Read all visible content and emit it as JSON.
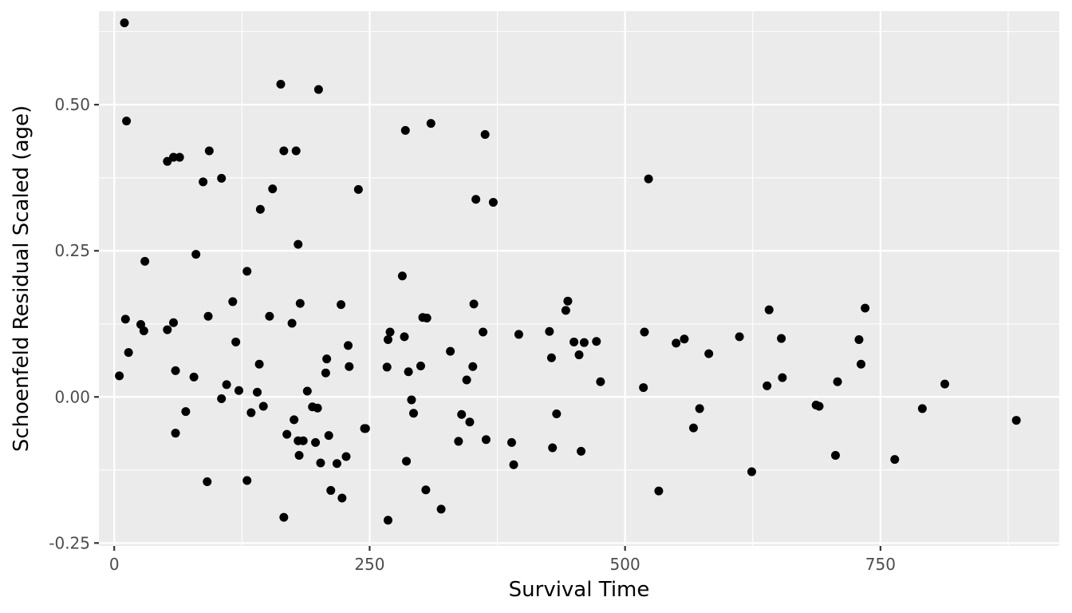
{
  "chart_data": {
    "type": "scatter",
    "title": "",
    "xlabel": "Survival Time",
    "ylabel": "Schoenfeld Residual Scaled (age)",
    "xlim": [
      -15,
      925
    ],
    "ylim": [
      -0.255,
      0.66
    ],
    "xticks": [
      0,
      250,
      500,
      750
    ],
    "xtick_labels": [
      "0",
      "250",
      "500",
      "750"
    ],
    "yticks": [
      -0.25,
      0,
      0.25,
      0.5
    ],
    "ytick_labels": [
      "-0.25",
      "0.00",
      "0.25",
      "0.50"
    ],
    "x_minor": [
      125,
      375,
      625,
      875
    ],
    "y_minor": [
      -0.125,
      0.125,
      0.375,
      0.625
    ],
    "grid": true,
    "panel_color": "#ebebeb",
    "point_color": "#000000",
    "points": [
      [
        10,
        0.64
      ],
      [
        12,
        0.472
      ],
      [
        5,
        0.036
      ],
      [
        14,
        0.076
      ],
      [
        11,
        0.133
      ],
      [
        26,
        0.124
      ],
      [
        29,
        0.113
      ],
      [
        30,
        0.232
      ],
      [
        52,
        0.403
      ],
      [
        58,
        0.41
      ],
      [
        64,
        0.41
      ],
      [
        52,
        0.115
      ],
      [
        58,
        0.127
      ],
      [
        60,
        0.045
      ],
      [
        60,
        -0.062
      ],
      [
        70,
        -0.025
      ],
      [
        78,
        0.034
      ],
      [
        80,
        0.244
      ],
      [
        87,
        0.368
      ],
      [
        93,
        0.421
      ],
      [
        92,
        0.138
      ],
      [
        91,
        -0.145
      ],
      [
        105,
        0.374
      ],
      [
        105,
        -0.003
      ],
      [
        110,
        0.021
      ],
      [
        116,
        0.163
      ],
      [
        119,
        0.094
      ],
      [
        122,
        0.011
      ],
      [
        130,
        0.215
      ],
      [
        130,
        -0.143
      ],
      [
        134,
        -0.027
      ],
      [
        140,
        0.008
      ],
      [
        142,
        0.056
      ],
      [
        143,
        0.321
      ],
      [
        146,
        -0.016
      ],
      [
        152,
        0.138
      ],
      [
        155,
        0.356
      ],
      [
        163,
        0.535
      ],
      [
        166,
        0.421
      ],
      [
        166,
        -0.206
      ],
      [
        169,
        -0.064
      ],
      [
        174,
        0.126
      ],
      [
        176,
        -0.039
      ],
      [
        178,
        0.421
      ],
      [
        180,
        0.261
      ],
      [
        180,
        -0.075
      ],
      [
        181,
        -0.1
      ],
      [
        182,
        0.16
      ],
      [
        185,
        -0.075
      ],
      [
        189,
        0.01
      ],
      [
        194,
        -0.017
      ],
      [
        197,
        -0.078
      ],
      [
        199,
        -0.019
      ],
      [
        200,
        0.526
      ],
      [
        202,
        -0.113
      ],
      [
        207,
        0.041
      ],
      [
        208,
        0.065
      ],
      [
        210,
        -0.066
      ],
      [
        212,
        -0.16
      ],
      [
        218,
        -0.114
      ],
      [
        222,
        0.158
      ],
      [
        223,
        -0.173
      ],
      [
        227,
        -0.102
      ],
      [
        229,
        0.088
      ],
      [
        230,
        0.052
      ],
      [
        239,
        0.355
      ],
      [
        245,
        -0.054
      ],
      [
        246,
        -0.054
      ],
      [
        267,
        0.051
      ],
      [
        268,
        0.098
      ],
      [
        268,
        -0.211
      ],
      [
        270,
        0.111
      ],
      [
        282,
        0.207
      ],
      [
        284,
        0.103
      ],
      [
        285,
        0.456
      ],
      [
        286,
        -0.11
      ],
      [
        288,
        0.043
      ],
      [
        291,
        -0.005
      ],
      [
        293,
        -0.028
      ],
      [
        300,
        0.053
      ],
      [
        302,
        0.136
      ],
      [
        305,
        -0.159
      ],
      [
        306,
        0.135
      ],
      [
        310,
        0.468
      ],
      [
        320,
        -0.192
      ],
      [
        329,
        0.078
      ],
      [
        337,
        -0.076
      ],
      [
        340,
        -0.03
      ],
      [
        345,
        0.029
      ],
      [
        348,
        -0.043
      ],
      [
        351,
        0.052
      ],
      [
        352,
        0.159
      ],
      [
        354,
        0.338
      ],
      [
        361,
        0.111
      ],
      [
        363,
        0.449
      ],
      [
        364,
        -0.073
      ],
      [
        371,
        0.333
      ],
      [
        389,
        -0.078
      ],
      [
        391,
        -0.116
      ],
      [
        396,
        0.107
      ],
      [
        426,
        0.112
      ],
      [
        428,
        0.067
      ],
      [
        429,
        -0.087
      ],
      [
        433,
        -0.029
      ],
      [
        442,
        0.148
      ],
      [
        444,
        0.164
      ],
      [
        450,
        0.094
      ],
      [
        455,
        0.072
      ],
      [
        457,
        -0.093
      ],
      [
        460,
        0.093
      ],
      [
        472,
        0.095
      ],
      [
        476,
        0.026
      ],
      [
        518,
        0.016
      ],
      [
        519,
        0.111
      ],
      [
        523,
        0.373
      ],
      [
        533,
        -0.161
      ],
      [
        567,
        -0.053
      ],
      [
        550,
        0.092
      ],
      [
        558,
        0.099
      ],
      [
        573,
        -0.02
      ],
      [
        582,
        0.074
      ],
      [
        612,
        0.103
      ],
      [
        624,
        -0.128
      ],
      [
        639,
        0.019
      ],
      [
        641,
        0.149
      ],
      [
        653,
        0.1
      ],
      [
        654,
        0.033
      ],
      [
        687,
        -0.014
      ],
      [
        690,
        -0.016
      ],
      [
        706,
        -0.1
      ],
      [
        708,
        0.026
      ],
      [
        729,
        0.098
      ],
      [
        731,
        0.056
      ],
      [
        735,
        0.152
      ],
      [
        764,
        -0.107
      ],
      [
        791,
        -0.02
      ],
      [
        813,
        0.022
      ],
      [
        883,
        -0.04
      ]
    ]
  }
}
